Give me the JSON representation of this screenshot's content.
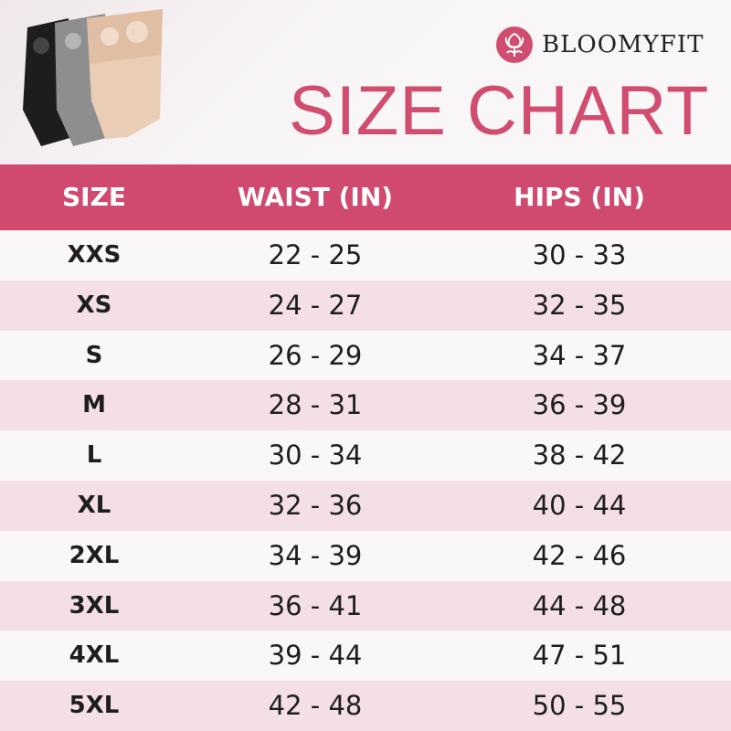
{
  "brand": {
    "name": "BLOOMYFIT",
    "logo_icon": "tulip-icon",
    "accent_color": "#cf4a6e"
  },
  "title": "SIZE CHART",
  "columns": [
    "SIZE",
    "WAIST (IN)",
    "HIPS (IN)"
  ],
  "rows": [
    {
      "size": "XXS",
      "waist": "22 - 25",
      "hips": "30 - 33"
    },
    {
      "size": "XS",
      "waist": "24 - 27",
      "hips": "32 - 35"
    },
    {
      "size": "S",
      "waist": "26 - 29",
      "hips": "34 - 37"
    },
    {
      "size": "M",
      "waist": "28 - 31",
      "hips": "36 - 39"
    },
    {
      "size": "L",
      "waist": "30 - 34",
      "hips": "38 - 42"
    },
    {
      "size": "XL",
      "waist": "32 - 36",
      "hips": "40 - 44"
    },
    {
      "size": "2XL",
      "waist": "34 - 39",
      "hips": "42 - 46"
    },
    {
      "size": "3XL",
      "waist": "36 - 41",
      "hips": "44 - 48"
    },
    {
      "size": "4XL",
      "waist": "39 - 44",
      "hips": "47 - 51"
    },
    {
      "size": "5XL",
      "waist": "42 - 48",
      "hips": "50 - 55"
    }
  ]
}
